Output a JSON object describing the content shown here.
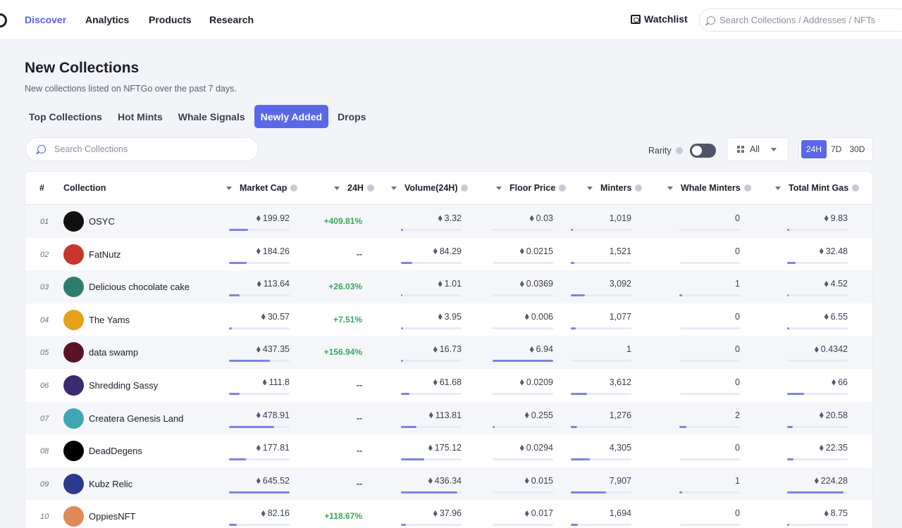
{
  "nav": {
    "items": [
      "Discover",
      "Analytics",
      "Products",
      "Research"
    ],
    "watchlist": "Watchlist",
    "search_placeholder": "Search Collections / Addresses / NFTs"
  },
  "header": {
    "title": "New Collections",
    "subtitle": "New collections listed on NFTGo over the past 7 days."
  },
  "tabs": [
    "Top Collections",
    "Hot Mints",
    "Whale Signals",
    "Newly Added",
    "Drops"
  ],
  "active_tab": "Newly Added",
  "controls": {
    "search_placeholder": "Search Collections",
    "rarity_label": "Rarity",
    "filter_value": "All",
    "periods": [
      "24H",
      "7D",
      "30D"
    ],
    "active_period": "24H"
  },
  "table": {
    "columns": {
      "rank": "#",
      "collection": "Collection",
      "market_cap": "Market Cap",
      "change": "24H",
      "volume": "Volume(24H)",
      "floor": "Floor Price",
      "minters": "Minters",
      "whale_minters": "Whale Minters",
      "gas": "Total Mint Gas"
    },
    "rows": [
      {
        "rank": "01",
        "name": "OSYC",
        "market_cap": "199.92",
        "change": "+409.81%",
        "volume": "3.32",
        "floor": "0.03",
        "minters": "1,019",
        "whale_minters": "0",
        "gas": "9.83",
        "bars": [
          0.31,
          0.04,
          0.004,
          0.04,
          0.0,
          0.04
        ],
        "avatar_color": "#111111"
      },
      {
        "rank": "02",
        "name": "FatNutz",
        "market_cap": "184.26",
        "change": "--",
        "volume": "84.29",
        "floor": "0.0215",
        "minters": "1,521",
        "whale_minters": "0",
        "gas": "32.48",
        "bars": [
          0.29,
          0.19,
          0.003,
          0.06,
          0.0,
          0.14
        ],
        "avatar_color": "#c8352b"
      },
      {
        "rank": "03",
        "name": "Delicious chocolate cake",
        "market_cap": "113.64",
        "change": "+26.03%",
        "volume": "1.01",
        "floor": "0.0369",
        "minters": "3,092",
        "whale_minters": "1",
        "gas": "4.52",
        "bars": [
          0.18,
          0.02,
          0.005,
          0.23,
          0.05,
          0.02
        ],
        "avatar_color": "#2e7d6c"
      },
      {
        "rank": "04",
        "name": "The Yams",
        "market_cap": "30.57",
        "change": "+7.51%",
        "volume": "3.95",
        "floor": "0.006",
        "minters": "1,077",
        "whale_minters": "0",
        "gas": "6.55",
        "bars": [
          0.05,
          0.03,
          0.001,
          0.08,
          0.0,
          0.03
        ],
        "avatar_color": "#e3a21a"
      },
      {
        "rank": "05",
        "name": "data swamp",
        "market_cap": "437.35",
        "change": "+156.94%",
        "volume": "16.73",
        "floor": "6.94",
        "minters": "1",
        "whale_minters": "0",
        "gas": "0.4342",
        "bars": [
          0.68,
          0.04,
          1.0,
          0.0,
          0.0,
          0.005
        ],
        "avatar_color": "#5a1325"
      },
      {
        "rank": "06",
        "name": "Shredding Sassy",
        "market_cap": "111.8",
        "change": "--",
        "volume": "61.68",
        "floor": "0.0209",
        "minters": "3,612",
        "whale_minters": "0",
        "gas": "66",
        "bars": [
          0.17,
          0.14,
          0.003,
          0.27,
          0.0,
          0.28
        ],
        "avatar_color": "#3a2a6e"
      },
      {
        "rank": "07",
        "name": "Createra Genesis Land",
        "market_cap": "478.91",
        "change": "--",
        "volume": "113.81",
        "floor": "0.255",
        "minters": "1,276",
        "whale_minters": "2",
        "gas": "20.58",
        "bars": [
          0.74,
          0.26,
          0.04,
          0.1,
          0.12,
          0.09
        ],
        "avatar_color": "#3fa7b3"
      },
      {
        "rank": "08",
        "name": "DeadDegens",
        "market_cap": "177.81",
        "change": "--",
        "volume": "175.12",
        "floor": "0.0294",
        "minters": "4,305",
        "whale_minters": "0",
        "gas": "22.35",
        "bars": [
          0.28,
          0.38,
          0.004,
          0.31,
          0.0,
          0.1
        ],
        "avatar_color": "#000000"
      },
      {
        "rank": "09",
        "name": "Kubz Relic",
        "market_cap": "645.52",
        "change": "--",
        "volume": "436.34",
        "floor": "0.015",
        "minters": "7,907",
        "whale_minters": "1",
        "gas": "224.28",
        "bars": [
          1.0,
          0.93,
          0.002,
          0.58,
          0.05,
          0.93
        ],
        "avatar_color": "#2a3a8c"
      },
      {
        "rank": "10",
        "name": "OppiesNFT",
        "market_cap": "82.16",
        "change": "+118.67%",
        "volume": "37.96",
        "floor": "0.017",
        "minters": "1,694",
        "whale_minters": "0",
        "gas": "8.75",
        "bars": [
          0.13,
          0.08,
          0.002,
          0.12,
          0.0,
          0.04
        ],
        "avatar_color": "#e0895a"
      }
    ]
  }
}
